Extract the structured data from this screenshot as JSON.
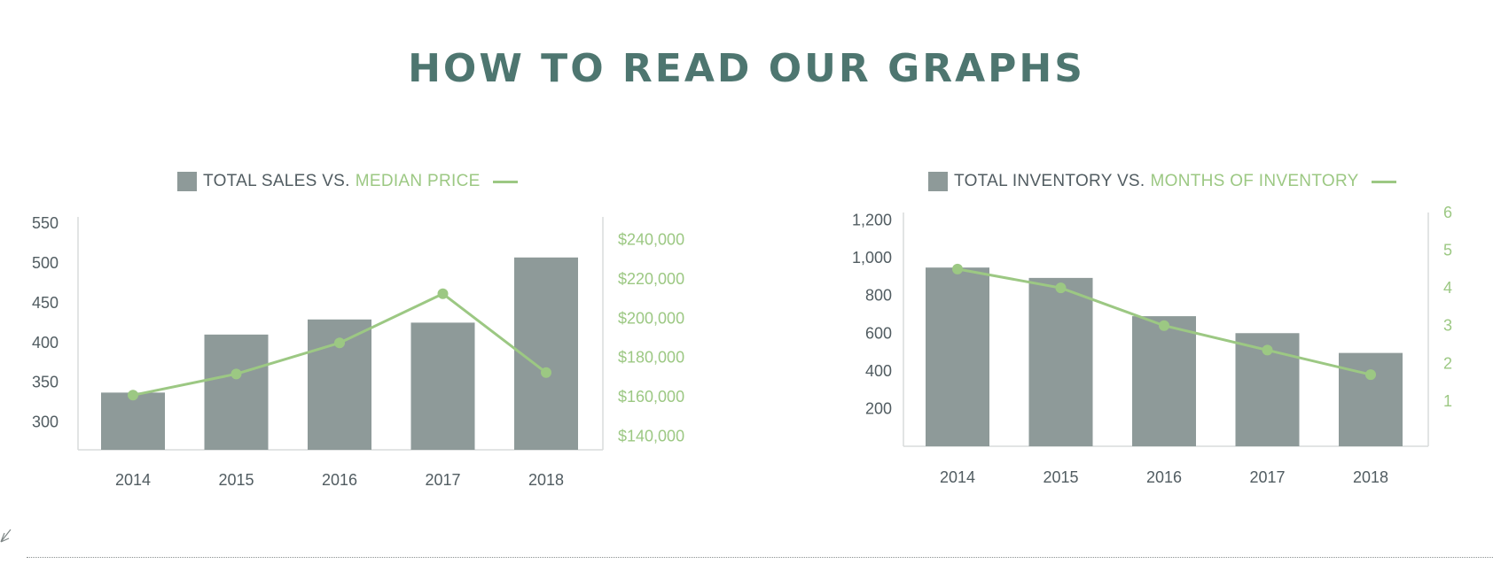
{
  "page": {
    "title": "HOW TO READ OUR GRAPHS"
  },
  "colors": {
    "title": "#4e7670",
    "bar": "#8e9a99",
    "line": "#9cc883",
    "axis_text": "#515c61",
    "axis_line": "#d9dcdc"
  },
  "icons": {
    "corner": "cursor-arrow-icon"
  },
  "chart_data": [
    {
      "type": "bar",
      "legend": {
        "bar_label": "TOTAL SALES VS.",
        "line_label": "MEDIAN PRICE"
      },
      "categories": [
        "2014",
        "2015",
        "2016",
        "2017",
        "2018"
      ],
      "bar_values": [
        337,
        410,
        429,
        425,
        507
      ],
      "line_values": [
        160800,
        171600,
        187400,
        212400,
        172300
      ],
      "y_left": {
        "min": 265,
        "max": 558,
        "ticks": [
          550,
          500,
          450,
          400,
          350,
          300
        ],
        "tick_labels": [
          "550",
          "500",
          "450",
          "400",
          "350",
          "300"
        ]
      },
      "y_right": {
        "min": 133000,
        "max": 251500,
        "ticks": [
          240000,
          220000,
          200000,
          180000,
          160000,
          140000
        ],
        "tick_labels": [
          "$240,000",
          "$220,000",
          "$200,000",
          "$180,000",
          "$160,000",
          "$140,000"
        ]
      },
      "legend_position": "top-center",
      "grid": false
    },
    {
      "type": "bar",
      "legend": {
        "bar_label": "TOTAL INVENTORY VS.",
        "line_label": "MONTHS OF INVENTORY"
      },
      "categories": [
        "2014",
        "2015",
        "2016",
        "2017",
        "2018"
      ],
      "bar_values": [
        948,
        893,
        690,
        600,
        495
      ],
      "line_values": [
        4.5,
        4.0,
        3.0,
        2.35,
        1.7
      ],
      "y_left": {
        "min": 0,
        "max": 1240,
        "ticks": [
          1200,
          1000,
          800,
          600,
          400,
          200
        ],
        "tick_labels": [
          "1,200",
          "1,000",
          "800",
          "600",
          "400",
          "200"
        ]
      },
      "y_right": {
        "min": -0.2,
        "max": 6.0,
        "ticks": [
          6,
          5,
          4,
          3,
          2,
          1
        ],
        "tick_labels": [
          "6",
          "5",
          "4",
          "3",
          "2",
          "1"
        ]
      },
      "legend_position": "top-center",
      "grid": false
    }
  ]
}
